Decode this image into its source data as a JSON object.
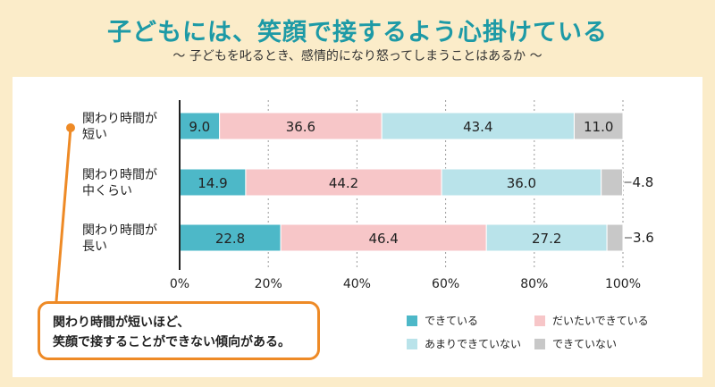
{
  "header": {
    "title": "子どもには、笑顔で接するよう心掛けている",
    "subtitle": "〜 子どもを叱るとき、感情的になり怒ってしまうことはあるか 〜"
  },
  "callout": {
    "line1": "関わり時間が短いほど、",
    "line2": "笑顔で接することができない傾向がある。"
  },
  "colors": {
    "series": [
      "#4db8c8",
      "#f7c6c8",
      "#b9e3ea",
      "#c8c8c8"
    ],
    "accent": "#ee8a26",
    "title": "#1d9aa6"
  },
  "chart_data": {
    "type": "bar",
    "orientation": "horizontal",
    "stacked": true,
    "categories": [
      [
        "関わり時間が",
        "短い"
      ],
      [
        "関わり時間が",
        "中くらい"
      ],
      [
        "関わり時間が",
        "長い"
      ]
    ],
    "series": [
      {
        "name": "できている",
        "values": [
          9.0,
          14.9,
          22.8
        ]
      },
      {
        "name": "だいたいできている",
        "values": [
          36.6,
          44.2,
          46.4
        ]
      },
      {
        "name": "あまりできていない",
        "values": [
          43.4,
          36.0,
          27.2
        ]
      },
      {
        "name": "できていない",
        "values": [
          11.0,
          4.8,
          3.6
        ]
      }
    ],
    "xlim": [
      0,
      100
    ],
    "xticks": [
      "0%",
      "20%",
      "40%",
      "60%",
      "80%",
      "100%"
    ],
    "grid": true,
    "legend": "bottom-right"
  }
}
